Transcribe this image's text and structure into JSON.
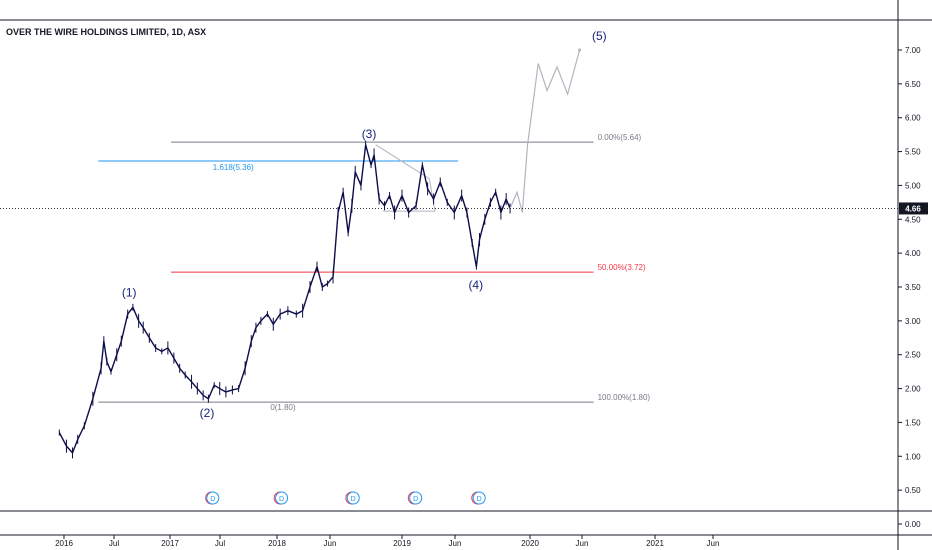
{
  "chart_title": "OVER THE WIRE HOLDINGS LIMITED, 1D, ASX",
  "current_price_label": "4.66",
  "colors": {
    "price": "#0d0d4a",
    "wave_label": "#1a237e",
    "fib_gray": "#787b86",
    "fib_blue": "#2196f3",
    "fib_red": "#f23645",
    "projection": "#b2b5be",
    "event_e": "#f23645",
    "event_d": "#2196f3"
  },
  "chart_data": {
    "type": "line",
    "x_axis_labels": [
      "2016",
      "Jul",
      "2017",
      "Jul",
      "2018",
      "Jun",
      "2019",
      "Jun",
      "2020",
      "Jun",
      "2021",
      "Jun"
    ],
    "y_axis_labels": [
      "0.00",
      "0.50",
      "1.00",
      "1.50",
      "2.00",
      "2.50",
      "3.00",
      "3.50",
      "4.00",
      "4.50",
      "5.00",
      "5.50",
      "6.00",
      "6.50",
      "7.00"
    ],
    "ylim": [
      -0.1,
      7.6
    ],
    "series": [
      {
        "values_x": [
          "2015-12-15",
          "2016-01-10",
          "2016-02-01",
          "2016-02-20",
          "2016-03-15",
          "2016-04-15",
          "2016-05-15",
          "2016-05-25",
          "2016-06-05",
          "2016-06-20",
          "2016-07-10",
          "2016-07-25",
          "2016-08-15",
          "2016-09-01",
          "2016-09-20",
          "2016-10-05",
          "2016-10-25",
          "2016-11-15",
          "2016-12-05",
          "2016-12-25",
          "2017-01-15",
          "2017-02-05",
          "2017-02-25",
          "2017-03-20",
          "2017-04-10",
          "2017-05-01",
          "2017-05-20",
          "2017-06-10",
          "2017-06-30",
          "2017-07-20",
          "2017-08-10",
          "2017-08-30",
          "2017-09-20",
          "2017-10-10",
          "2017-10-25",
          "2017-11-10",
          "2017-12-01",
          "2017-12-20",
          "2018-01-10",
          "2018-02-01",
          "2018-02-25",
          "2018-03-15",
          "2018-04-05",
          "2018-04-25",
          "2018-05-10",
          "2018-05-25",
          "2018-06-10",
          "2018-06-25",
          "2018-07-10",
          "2018-07-25",
          "2018-08-05",
          "2018-08-15",
          "2018-09-01",
          "2018-09-15",
          "2018-10-01",
          "2018-10-10",
          "2018-10-25",
          "2018-11-10",
          "2018-11-25",
          "2018-12-10",
          "2019-01-01",
          "2019-01-20",
          "2019-02-10",
          "2019-02-28",
          "2019-03-15",
          "2019-04-01",
          "2019-04-20",
          "2019-05-10",
          "2019-05-30",
          "2019-06-20",
          "2019-07-05",
          "2019-07-20",
          "2019-08-01",
          "2019-08-10",
          "2019-08-25",
          "2019-09-10",
          "2019-09-25",
          "2019-10-10",
          "2019-10-25",
          "2019-11-05"
        ],
        "values": [
          1.35,
          1.15,
          1.05,
          1.25,
          1.45,
          1.85,
          2.3,
          2.7,
          2.4,
          2.25,
          2.5,
          2.7,
          3.1,
          3.2,
          3.0,
          2.9,
          2.75,
          2.6,
          2.55,
          2.6,
          2.45,
          2.3,
          2.2,
          2.1,
          2.0,
          1.9,
          1.85,
          2.05,
          2.0,
          1.95,
          1.98,
          2.0,
          2.3,
          2.7,
          2.9,
          3.0,
          3.1,
          2.95,
          3.1,
          3.15,
          3.1,
          3.15,
          3.5,
          3.8,
          3.5,
          3.55,
          3.65,
          4.6,
          4.9,
          4.3,
          4.7,
          5.2,
          5.0,
          5.6,
          5.3,
          5.45,
          4.8,
          4.7,
          4.85,
          4.6,
          4.85,
          4.6,
          4.7,
          5.3,
          4.95,
          4.8,
          5.05,
          4.75,
          4.6,
          4.85,
          4.6,
          4.15,
          3.8,
          4.2,
          4.5,
          4.75,
          4.9,
          4.6,
          4.8,
          4.66
        ]
      },
      {
        "values_x": [
          "2019-11-05",
          "2019-11-25",
          "2019-12-10",
          "2019-12-25",
          "2020-01-25",
          "2020-02-20",
          "2020-03-20",
          "2020-04-20",
          "2020-05-25"
        ],
        "values": [
          4.66,
          4.9,
          4.6,
          5.6,
          6.8,
          6.4,
          6.75,
          6.35,
          7.0
        ]
      }
    ],
    "fib_levels": [
      {
        "label": "0.00%(5.64)",
        "value": 5.64,
        "color": "#787b86",
        "x_start": "2017-01-05",
        "x_end": "2020-07-05"
      },
      {
        "label": "1.618(5.36)",
        "value": 5.36,
        "color": "#2196f3",
        "x_start": "2016-05-05",
        "x_end": "2019-06-10"
      },
      {
        "label": "50.00%(3.72)",
        "value": 3.72,
        "color": "#f23645",
        "x_start": "2017-01-05",
        "x_end": "2020-07-05"
      },
      {
        "label": "100.00%(1.80)",
        "value": 1.8,
        "color": "#787b86",
        "x_start": "2016-05-05",
        "x_end": "2020-07-05"
      },
      {
        "label": "0(1.80)",
        "value": 1.8,
        "color": "#787b86",
        "x_start": "2016-05-05",
        "x_end": "2018-01-05"
      }
    ],
    "waves": [
      {
        "label": "(1)",
        "x": "2016-08-20",
        "y": 3.3
      },
      {
        "label": "(2)",
        "x": "2017-05-15",
        "y": 1.8
      },
      {
        "label": "(3)",
        "x": "2018-09-25",
        "y": 5.64
      },
      {
        "label": "(4)",
        "x": "2019-08-05",
        "y": 3.72
      },
      {
        "label": "(5)",
        "x": "2020-06-05",
        "y": 7.1
      }
    ],
    "events": [
      {
        "label": "E",
        "x": "2017-06-01",
        "type": "earnings"
      },
      {
        "label": "D",
        "x": "2017-06-05",
        "type": "dividend"
      },
      {
        "label": "E",
        "x": "2018-01-10",
        "type": "earnings"
      },
      {
        "label": "D",
        "x": "2018-01-14",
        "type": "dividend"
      },
      {
        "label": "E",
        "x": "2018-08-05",
        "type": "earnings"
      },
      {
        "label": "D",
        "x": "2018-08-09",
        "type": "dividend"
      },
      {
        "label": "E",
        "x": "2019-02-05",
        "type": "earnings"
      },
      {
        "label": "D",
        "x": "2019-02-09",
        "type": "dividend"
      },
      {
        "label": "E",
        "x": "2019-08-05",
        "type": "earnings"
      },
      {
        "label": "D",
        "x": "2019-08-09",
        "type": "dividend"
      }
    ]
  }
}
